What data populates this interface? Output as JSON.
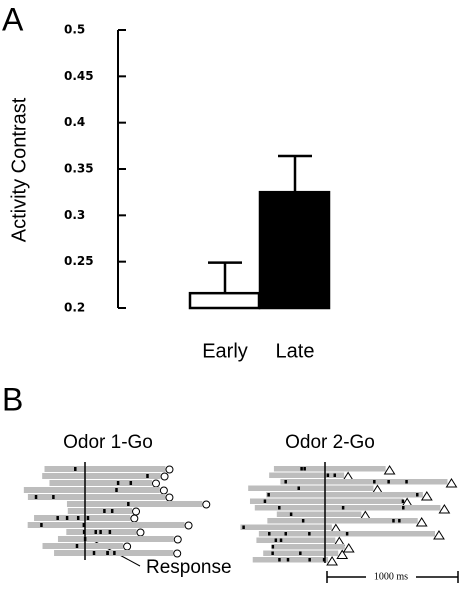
{
  "panel_a": {
    "label": "A"
  },
  "chart_data": {
    "type": "bar",
    "y_label": "Activity Contrast",
    "categories": [
      "Early",
      "Late"
    ],
    "values": [
      0.216,
      0.325
    ],
    "errors": [
      0.033,
      0.039
    ],
    "colors": [
      "#ffffff",
      "#000000"
    ],
    "ylim": [
      0.2,
      0.5
    ],
    "yticks": [
      0.2,
      0.25,
      0.3,
      0.35,
      0.4,
      0.45,
      0.5
    ],
    "grid": false
  },
  "panel_b": {
    "label": "B",
    "left_title": "Odor 1-Go",
    "right_title": "Odor 2-Go",
    "annotation": "Response",
    "scale_bar": "1000 ms"
  }
}
